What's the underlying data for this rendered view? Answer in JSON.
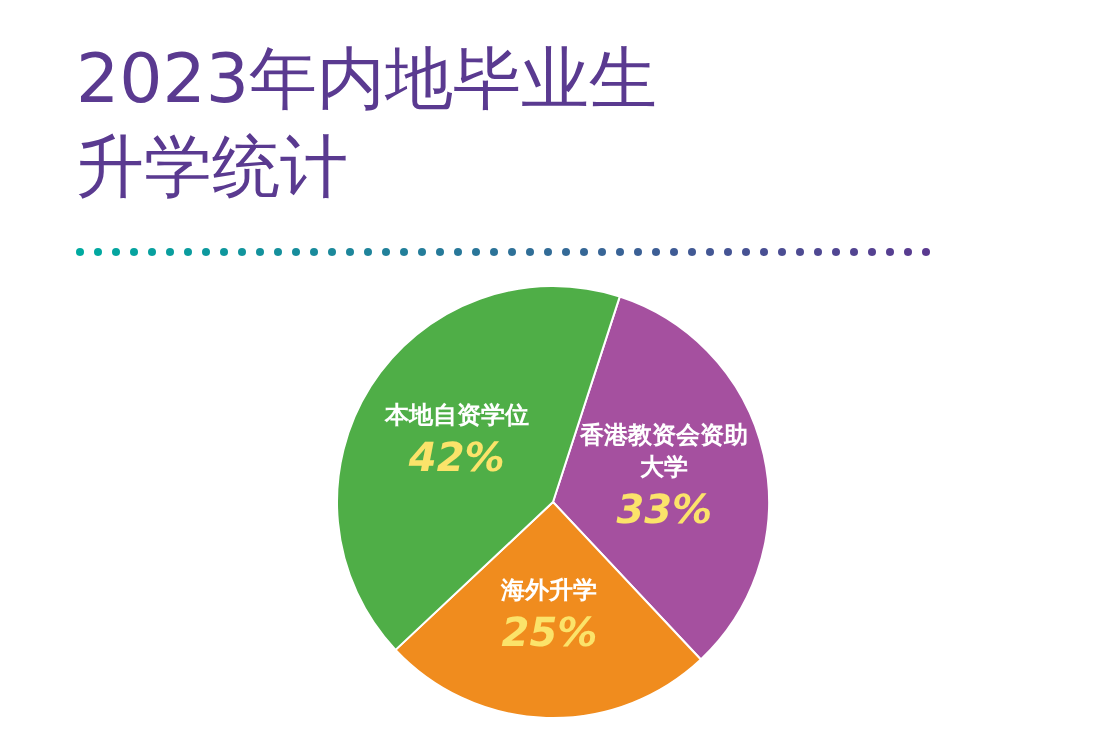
{
  "chart_data": {
    "type": "pie",
    "title": "2023年内地毕业生升学统计",
    "categories": [
      "香港教资会资助大学",
      "海外升学",
      "本地自资学位"
    ],
    "values": [
      33,
      25,
      42
    ],
    "value_labels": [
      "33%",
      "25%",
      "42%"
    ],
    "colors": [
      "#a5509f",
      "#f08c1e",
      "#4fae47"
    ],
    "legend": false
  }
}
